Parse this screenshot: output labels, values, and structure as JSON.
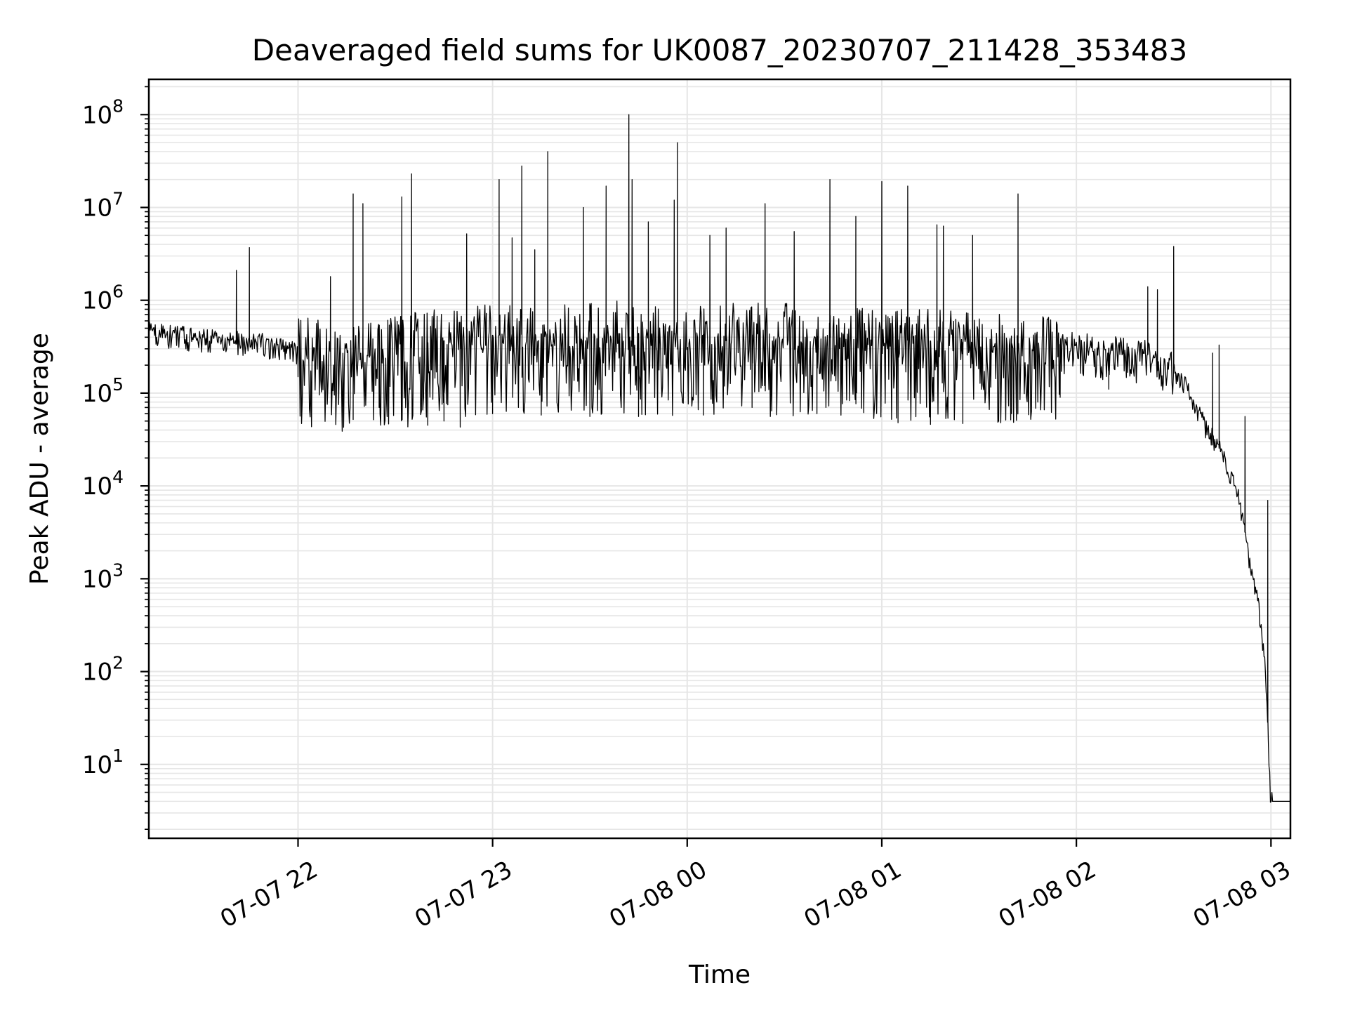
{
  "chart_data": {
    "type": "line",
    "title": "Deaveraged field sums for UK0087_20230707_211428_353483",
    "xlabel": "Time",
    "ylabel": "Peak ADU - average",
    "x_scale": "time",
    "y_scale": "log",
    "xlim": [
      "2023-07-07 21:14",
      "2023-07-08 03:06"
    ],
    "ylim": [
      1.6,
      240000000.0
    ],
    "x_ticks": [
      {
        "value": "2023-07-07 22:00",
        "label": "07-07 22"
      },
      {
        "value": "2023-07-07 23:00",
        "label": "07-07 23"
      },
      {
        "value": "2023-07-08 00:00",
        "label": "07-08 00"
      },
      {
        "value": "2023-07-08 01:00",
        "label": "07-08 01"
      },
      {
        "value": "2023-07-08 02:00",
        "label": "07-08 02"
      },
      {
        "value": "2023-07-08 03:00",
        "label": "07-08 03"
      }
    ],
    "y_ticks": [
      {
        "value": 10,
        "base": "10",
        "exp": "1"
      },
      {
        "value": 100,
        "base": "10",
        "exp": "2"
      },
      {
        "value": 1000,
        "base": "10",
        "exp": "3"
      },
      {
        "value": 10000,
        "base": "10",
        "exp": "4"
      },
      {
        "value": 100000,
        "base": "10",
        "exp": "5"
      },
      {
        "value": 1000000,
        "base": "10",
        "exp": "6"
      },
      {
        "value": 10000000,
        "base": "10",
        "exp": "7"
      },
      {
        "value": 100000000,
        "base": "10",
        "exp": "8"
      }
    ],
    "grid": true,
    "line_color": "#000000",
    "grid_color": "#e6e6e6",
    "series": [
      {
        "baseline": [
          {
            "x": "2023-07-07 21:14",
            "y": 500000
          },
          {
            "x": "2023-07-07 21:30",
            "y": 420000
          },
          {
            "x": "2023-07-07 21:50",
            "y": 370000
          },
          {
            "x": "2023-07-07 22:00",
            "y": 300000
          },
          {
            "x": "2023-07-07 22:20",
            "y": 280000
          },
          {
            "x": "2023-07-07 22:40",
            "y": 350000
          },
          {
            "x": "2023-07-07 23:00",
            "y": 420000
          },
          {
            "x": "2023-07-07 23:30",
            "y": 450000
          },
          {
            "x": "2023-07-08 00:00",
            "y": 430000
          },
          {
            "x": "2023-07-08 00:30",
            "y": 420000
          },
          {
            "x": "2023-07-08 01:00",
            "y": 380000
          },
          {
            "x": "2023-07-08 01:30",
            "y": 350000
          },
          {
            "x": "2023-07-08 02:00",
            "y": 330000
          },
          {
            "x": "2023-07-08 02:20",
            "y": 280000
          },
          {
            "x": "2023-07-08 02:30",
            "y": 200000
          },
          {
            "x": "2023-07-08 02:35",
            "y": 110000
          },
          {
            "x": "2023-07-08 02:40",
            "y": 45000
          },
          {
            "x": "2023-07-08 02:45",
            "y": 25000
          },
          {
            "x": "2023-07-08 02:50",
            "y": 8000
          },
          {
            "x": "2023-07-08 02:53",
            "y": 2000
          },
          {
            "x": "2023-07-08 02:56",
            "y": 600
          },
          {
            "x": "2023-07-08 02:58",
            "y": 150
          },
          {
            "x": "2023-07-08 02:59",
            "y": 30
          },
          {
            "x": "2023-07-08 03:00",
            "y": 4
          },
          {
            "x": "2023-07-08 03:06",
            "y": 4
          }
        ],
        "spikes": [
          {
            "x": "2023-07-07 21:41",
            "y": 2100000
          },
          {
            "x": "2023-07-07 21:45",
            "y": 3700000
          },
          {
            "x": "2023-07-07 22:10",
            "y": 1800000
          },
          {
            "x": "2023-07-07 22:17",
            "y": 14000000
          },
          {
            "x": "2023-07-07 22:20",
            "y": 11000000
          },
          {
            "x": "2023-07-07 22:32",
            "y": 13000000
          },
          {
            "x": "2023-07-07 22:35",
            "y": 23000000
          },
          {
            "x": "2023-07-07 22:52",
            "y": 5200000
          },
          {
            "x": "2023-07-07 23:02",
            "y": 20000000
          },
          {
            "x": "2023-07-07 23:06",
            "y": 4700000
          },
          {
            "x": "2023-07-07 23:09",
            "y": 28000000
          },
          {
            "x": "2023-07-07 23:13",
            "y": 3500000
          },
          {
            "x": "2023-07-07 23:17",
            "y": 40000000
          },
          {
            "x": "2023-07-07 23:28",
            "y": 10000000
          },
          {
            "x": "2023-07-07 23:35",
            "y": 17000000
          },
          {
            "x": "2023-07-07 23:42",
            "y": 100000000
          },
          {
            "x": "2023-07-07 23:43",
            "y": 20000000
          },
          {
            "x": "2023-07-07 23:48",
            "y": 7000000
          },
          {
            "x": "2023-07-07 23:56",
            "y": 12000000
          },
          {
            "x": "2023-07-07 23:57",
            "y": 50000000
          },
          {
            "x": "2023-07-08 00:07",
            "y": 5000000
          },
          {
            "x": "2023-07-08 00:12",
            "y": 6000000
          },
          {
            "x": "2023-07-08 00:24",
            "y": 11000000
          },
          {
            "x": "2023-07-08 00:33",
            "y": 5500000
          },
          {
            "x": "2023-07-08 00:44",
            "y": 20000000
          },
          {
            "x": "2023-07-08 00:52",
            "y": 8000000
          },
          {
            "x": "2023-07-08 01:00",
            "y": 19000000
          },
          {
            "x": "2023-07-08 01:08",
            "y": 17000000
          },
          {
            "x": "2023-07-08 01:17",
            "y": 6500000
          },
          {
            "x": "2023-07-08 01:19",
            "y": 6300000
          },
          {
            "x": "2023-07-08 01:28",
            "y": 5000000
          },
          {
            "x": "2023-07-08 01:42",
            "y": 14000000
          },
          {
            "x": "2023-07-08 02:22",
            "y": 1400000
          },
          {
            "x": "2023-07-08 02:25",
            "y": 1300000
          },
          {
            "x": "2023-07-08 02:30",
            "y": 3800000
          },
          {
            "x": "2023-07-08 02:42",
            "y": 270000
          },
          {
            "x": "2023-07-08 02:44",
            "y": 330000
          },
          {
            "x": "2023-07-08 02:52",
            "y": 56000
          },
          {
            "x": "2023-07-08 02:59",
            "y": 7000
          }
        ],
        "dips": [
          {
            "x": "2023-07-07 22:00",
            "y": 150000
          },
          {
            "x": "2023-07-07 22:17",
            "y": 52000
          },
          {
            "x": "2023-07-07 22:25",
            "y": 70000
          },
          {
            "x": "2023-07-07 22:40",
            "y": 45000
          },
          {
            "x": "2023-07-07 22:45",
            "y": 50000
          },
          {
            "x": "2023-07-07 22:50",
            "y": 43000
          },
          {
            "x": "2023-07-07 23:00",
            "y": 60000
          },
          {
            "x": "2023-07-07 23:15",
            "y": 58000
          },
          {
            "x": "2023-07-07 23:30",
            "y": 56000
          },
          {
            "x": "2023-07-07 23:45",
            "y": 56000
          },
          {
            "x": "2023-07-08 00:05",
            "y": 58000
          },
          {
            "x": "2023-07-08 00:20",
            "y": 70000
          },
          {
            "x": "2023-07-08 00:40",
            "y": 60000
          },
          {
            "x": "2023-07-08 01:05",
            "y": 48000
          },
          {
            "x": "2023-07-08 01:15",
            "y": 46000
          },
          {
            "x": "2023-07-08 01:25",
            "y": 47000
          },
          {
            "x": "2023-07-08 01:40",
            "y": 60000
          },
          {
            "x": "2023-07-08 01:55",
            "y": 90000
          },
          {
            "x": "2023-07-08 02:10",
            "y": 110000
          }
        ]
      }
    ]
  }
}
